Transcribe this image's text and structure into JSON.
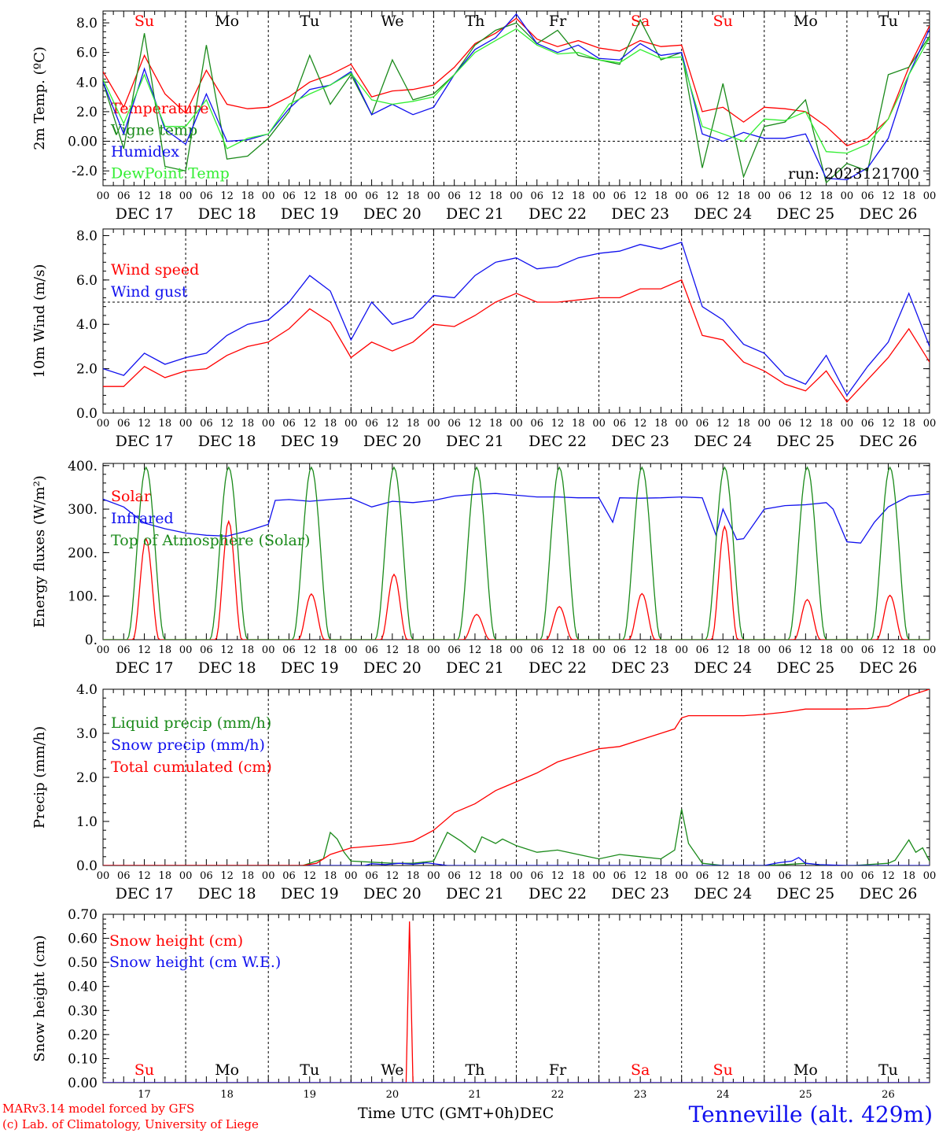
{
  "days": [
    "DEC 17",
    "DEC 18",
    "DEC 19",
    "DEC 20",
    "DEC 21",
    "DEC 22",
    "DEC 23",
    "DEC 24",
    "DEC 25",
    "DEC 26"
  ],
  "weekdays": [
    "Su",
    "Mo",
    "Tu",
    "We",
    "Th",
    "Fr",
    "Sa",
    "Su",
    "Mo",
    "Tu"
  ],
  "weekday_colors": [
    "#ff0000",
    "#000000",
    "#000000",
    "#000000",
    "#000000",
    "#000000",
    "#ff0000",
    "#ff0000",
    "#000000",
    "#000000"
  ],
  "hour_ticks": [
    "00",
    "06",
    "12",
    "18"
  ],
  "end_tick": "00",
  "day_numbers": [
    "17",
    "18",
    "19",
    "20",
    "21",
    "22",
    "23",
    "24",
    "25",
    "26"
  ],
  "footer": {
    "model": "MARv3.14 model forced by GFS",
    "credit": "(c) Lab. of Climatology, University of Liege",
    "xaxis_label": "Time UTC (GMT+0h)",
    "month": "DEC",
    "station": "Tenneville (alt. 429m)"
  },
  "chart_data": [
    {
      "type": "line",
      "ylabel": "2m Temp. (ºC)",
      "ylim": [
        -3,
        8.8
      ],
      "yticks": [
        "8.0",
        "6.0",
        "4.0",
        "2.0",
        "0.00",
        "-2.0"
      ],
      "ytick_values": [
        8,
        6,
        4,
        2,
        0,
        -2
      ],
      "ref_line": 0,
      "x_unit": "hours from DEC 17 00 UTC",
      "run_label": "run: 2023121700",
      "series": [
        {
          "name": "Temperature",
          "color": "#ff0000",
          "x": [
            0,
            6,
            12,
            18,
            24,
            30,
            36,
            42,
            48,
            54,
            60,
            66,
            72,
            78,
            84,
            90,
            96,
            102,
            108,
            114,
            120,
            126,
            132,
            138,
            144,
            150,
            156,
            162,
            168,
            174,
            180,
            186,
            192,
            198,
            204,
            210,
            216,
            222,
            228,
            234,
            240
          ],
          "y": [
            4.7,
            2.3,
            5.8,
            3.2,
            1.9,
            4.8,
            2.5,
            2.2,
            2.3,
            3.0,
            4.0,
            4.5,
            5.2,
            3.0,
            3.4,
            3.5,
            3.8,
            5.0,
            6.6,
            7.3,
            8.3,
            6.9,
            6.4,
            6.8,
            6.3,
            6.1,
            6.8,
            6.4,
            6.5,
            2.0,
            2.3,
            1.3,
            2.3,
            2.2,
            2.0,
            1.0,
            -0.3,
            0.2,
            1.5,
            5.0,
            7.8
          ]
        },
        {
          "name": "Vigne temp",
          "color": "#1a8a1a",
          "x": [
            0,
            6,
            12,
            18,
            24,
            30,
            36,
            42,
            48,
            54,
            60,
            66,
            72,
            78,
            84,
            90,
            96,
            102,
            108,
            114,
            120,
            126,
            132,
            138,
            144,
            150,
            156,
            162,
            168,
            174,
            180,
            186,
            192,
            198,
            204,
            210,
            216,
            222,
            228,
            234,
            240
          ],
          "y": [
            4.0,
            -0.5,
            7.3,
            -1.7,
            -2.0,
            6.5,
            -1.2,
            -1.0,
            0.2,
            2.0,
            5.8,
            2.5,
            4.5,
            1.8,
            5.5,
            2.8,
            3.2,
            4.5,
            6.5,
            7.5,
            8.0,
            6.6,
            7.5,
            5.8,
            5.5,
            5.2,
            8.2,
            5.5,
            6.0,
            -1.8,
            3.9,
            -2.4,
            1.0,
            1.3,
            2.8,
            -2.8,
            -1.5,
            -2.0,
            4.5,
            5.0,
            7.1
          ]
        },
        {
          "name": "Humidex",
          "color": "#1010ee",
          "x": [
            0,
            6,
            12,
            18,
            24,
            30,
            36,
            42,
            48,
            54,
            60,
            66,
            72,
            78,
            84,
            90,
            96,
            102,
            108,
            114,
            120,
            126,
            132,
            138,
            144,
            150,
            156,
            162,
            168,
            174,
            180,
            186,
            192,
            198,
            204,
            210,
            216,
            222,
            228,
            234,
            240
          ],
          "y": [
            4.0,
            0.5,
            4.9,
            0.8,
            -0.2,
            3.2,
            0.0,
            0.1,
            0.5,
            2.2,
            3.5,
            3.8,
            4.7,
            1.8,
            2.5,
            1.8,
            2.3,
            4.5,
            6.2,
            7.0,
            8.6,
            6.6,
            6.0,
            6.5,
            5.6,
            5.5,
            6.6,
            5.8,
            6.0,
            0.5,
            0.0,
            0.6,
            0.2,
            0.2,
            0.5,
            -2.5,
            -2.6,
            -1.8,
            0.2,
            4.5,
            7.6
          ]
        },
        {
          "name": "DewPoint Temp",
          "color": "#33ee33",
          "x": [
            0,
            6,
            12,
            18,
            24,
            30,
            36,
            42,
            48,
            54,
            60,
            66,
            72,
            78,
            84,
            90,
            96,
            102,
            108,
            114,
            120,
            126,
            132,
            138,
            144,
            150,
            156,
            162,
            168,
            174,
            180,
            186,
            192,
            198,
            204,
            210,
            216,
            222,
            228,
            234,
            240
          ],
          "y": [
            4.2,
            1.2,
            4.5,
            1.0,
            1.0,
            2.8,
            -0.5,
            0.2,
            0.5,
            2.5,
            3.2,
            3.8,
            4.6,
            2.8,
            2.5,
            2.7,
            3.0,
            4.5,
            6.0,
            6.8,
            7.6,
            6.5,
            5.9,
            6.0,
            5.5,
            5.3,
            6.2,
            5.6,
            5.7,
            1.0,
            0.5,
            0.0,
            1.5,
            1.4,
            2.0,
            -0.7,
            -0.8,
            -0.2,
            1.5,
            4.5,
            7.0
          ]
        }
      ]
    },
    {
      "type": "line",
      "ylabel": "10m Wind (m/s)",
      "ylim": [
        0,
        8.3
      ],
      "yticks": [
        "8.0",
        "6.0",
        "4.0",
        "2.0",
        "0.0"
      ],
      "ytick_values": [
        8,
        6,
        4,
        2,
        0
      ],
      "ref_line": 5,
      "x_unit": "hours from DEC 17 00 UTC",
      "series": [
        {
          "name": "Wind speed",
          "color": "#ff0000",
          "x": [
            0,
            6,
            12,
            18,
            24,
            30,
            36,
            42,
            48,
            54,
            60,
            66,
            72,
            78,
            84,
            90,
            96,
            102,
            108,
            114,
            120,
            126,
            132,
            138,
            144,
            150,
            156,
            162,
            168,
            174,
            180,
            186,
            192,
            198,
            204,
            210,
            216,
            222,
            228,
            234,
            240
          ],
          "y": [
            1.2,
            1.2,
            2.1,
            1.6,
            1.9,
            2.0,
            2.6,
            3.0,
            3.2,
            3.8,
            4.7,
            4.1,
            2.5,
            3.2,
            2.8,
            3.2,
            4.0,
            3.9,
            4.4,
            5.0,
            5.4,
            5.0,
            5.0,
            5.1,
            5.2,
            5.2,
            5.6,
            5.6,
            6.0,
            3.5,
            3.3,
            2.3,
            1.9,
            1.3,
            1.0,
            1.9,
            0.5,
            1.5,
            2.5,
            3.8,
            2.3
          ]
        },
        {
          "name": "Wind gust",
          "color": "#1010ee",
          "x": [
            0,
            6,
            12,
            18,
            24,
            30,
            36,
            42,
            48,
            54,
            60,
            66,
            72,
            78,
            84,
            90,
            96,
            102,
            108,
            114,
            120,
            126,
            132,
            138,
            144,
            150,
            156,
            162,
            168,
            174,
            180,
            186,
            192,
            198,
            204,
            210,
            216,
            222,
            228,
            234,
            240
          ],
          "y": [
            2.0,
            1.7,
            2.7,
            2.2,
            2.5,
            2.7,
            3.5,
            4.0,
            4.2,
            5.0,
            6.2,
            5.5,
            3.3,
            5.0,
            4.0,
            4.3,
            5.3,
            5.2,
            6.2,
            6.8,
            7.0,
            6.5,
            6.6,
            7.0,
            7.2,
            7.3,
            7.6,
            7.4,
            7.7,
            4.8,
            4.2,
            3.1,
            2.7,
            1.7,
            1.3,
            2.6,
            0.8,
            2.1,
            3.2,
            5.4,
            3.0
          ]
        }
      ]
    },
    {
      "type": "line",
      "ylabel": "Energy fluxes (W/m²)",
      "ylim": [
        0,
        405
      ],
      "yticks": [
        "400.",
        "300.",
        "200.",
        "100.",
        "0."
      ],
      "ytick_values": [
        400,
        300,
        200,
        100,
        0
      ],
      "x_unit": "hours from DEC 17 00 UTC",
      "series": [
        {
          "name": "Solar",
          "color": "#ff0000",
          "daily_peaks": [
            232,
            272,
            105,
            150,
            58,
            76,
            106,
            260,
            92,
            102
          ]
        },
        {
          "name": "Infrared",
          "color": "#1010ee",
          "x": [
            0,
            6,
            12,
            18,
            24,
            30,
            36,
            42,
            48,
            50,
            54,
            60,
            66,
            72,
            78,
            84,
            90,
            96,
            102,
            108,
            114,
            120,
            126,
            132,
            138,
            144,
            148,
            150,
            156,
            162,
            168,
            174,
            178,
            180,
            184,
            186,
            192,
            198,
            204,
            210,
            212,
            216,
            220,
            224,
            228,
            234,
            240
          ],
          "y": [
            323,
            305,
            268,
            255,
            245,
            240,
            238,
            250,
            265,
            320,
            322,
            318,
            322,
            325,
            305,
            318,
            315,
            320,
            330,
            334,
            336,
            332,
            328,
            328,
            326,
            326,
            270,
            326,
            325,
            326,
            328,
            326,
            240,
            300,
            230,
            232,
            300,
            308,
            310,
            315,
            300,
            225,
            222,
            270,
            305,
            330,
            335
          ]
        },
        {
          "name": "Top of Atmosphere (Solar)",
          "color": "#1a8a1a",
          "daily_peaks": [
            396,
            396,
            396,
            396,
            396,
            396,
            396,
            396,
            396,
            396
          ]
        }
      ]
    },
    {
      "type": "line",
      "ylabel": "Precip (mm/h)",
      "ylim": [
        0,
        4.0
      ],
      "yticks": [
        "4.0",
        "3.0",
        "2.0",
        "1.0",
        "0.0"
      ],
      "ytick_values": [
        4,
        3,
        2,
        1,
        0
      ],
      "x_unit": "hours from DEC 17 00 UTC",
      "series": [
        {
          "name": "Liquid precip (mm/h)",
          "color": "#1a8a1a",
          "x": [
            0,
            48,
            58,
            60,
            62,
            64,
            66,
            68,
            70,
            72,
            84,
            90,
            96,
            100,
            104,
            108,
            110,
            114,
            116,
            120,
            126,
            132,
            138,
            144,
            150,
            156,
            162,
            166,
            168,
            170,
            174,
            180,
            192,
            198,
            204,
            210,
            214,
            216,
            218,
            222,
            228,
            230,
            234,
            236,
            238,
            240
          ],
          "y": [
            0,
            0,
            0,
            0.05,
            0.1,
            0.15,
            0.75,
            0.6,
            0.3,
            0.1,
            0.05,
            0.05,
            0.1,
            0.75,
            0.55,
            0.3,
            0.65,
            0.5,
            0.6,
            0.45,
            0.3,
            0.35,
            0.25,
            0.15,
            0.25,
            0.2,
            0.15,
            0.35,
            1.28,
            0.5,
            0.05,
            0,
            0,
            0.02,
            0.05,
            0,
            0,
            0,
            0,
            0.02,
            0.05,
            0.12,
            0.58,
            0.3,
            0.4,
            0.1
          ]
        },
        {
          "name": "Snow precip (mm/h)",
          "color": "#1010ee",
          "x": [
            0,
            76,
            78,
            82,
            86,
            90,
            94,
            100,
            192,
            196,
            200,
            202,
            204,
            208,
            216,
            240
          ],
          "y": [
            0,
            0,
            0.04,
            0.02,
            0.05,
            0.03,
            0.06,
            0,
            0,
            0.06,
            0.1,
            0.18,
            0.05,
            0.02,
            0,
            0
          ]
        },
        {
          "name": "Total cumulated (cm)",
          "color": "#ff0000",
          "x": [
            0,
            58,
            62,
            66,
            72,
            78,
            84,
            90,
            96,
            102,
            108,
            114,
            120,
            126,
            132,
            138,
            144,
            150,
            156,
            162,
            166,
            168,
            170,
            174,
            180,
            186,
            192,
            198,
            204,
            210,
            216,
            222,
            228,
            234,
            240
          ],
          "y": [
            0,
            0,
            0.05,
            0.25,
            0.4,
            0.44,
            0.48,
            0.55,
            0.8,
            1.2,
            1.4,
            1.7,
            1.9,
            2.1,
            2.35,
            2.5,
            2.65,
            2.7,
            2.85,
            3.0,
            3.1,
            3.35,
            3.4,
            3.4,
            3.4,
            3.4,
            3.43,
            3.48,
            3.55,
            3.55,
            3.55,
            3.56,
            3.62,
            3.85,
            4.0
          ]
        }
      ]
    },
    {
      "type": "line",
      "ylabel": "Snow height (cm)",
      "ylim": [
        0,
        0.7
      ],
      "yticks": [
        "0.70",
        "0.60",
        "0.50",
        "0.40",
        "0.30",
        "0.20",
        "0.10",
        "0.00"
      ],
      "ytick_values": [
        0.7,
        0.6,
        0.5,
        0.4,
        0.3,
        0.2,
        0.1,
        0
      ],
      "x_unit": "hours from DEC 17 00 UTC",
      "series": [
        {
          "name": "Snow height (cm)",
          "color": "#ff0000",
          "x": [
            0,
            88,
            89,
            90,
            91,
            240
          ],
          "y": [
            0,
            0,
            0.67,
            0,
            0,
            0
          ]
        },
        {
          "name": "Snow height (cm W.E.)",
          "color": "#1010ee",
          "x": [
            0,
            240
          ],
          "y": [
            0,
            0
          ]
        }
      ]
    }
  ]
}
